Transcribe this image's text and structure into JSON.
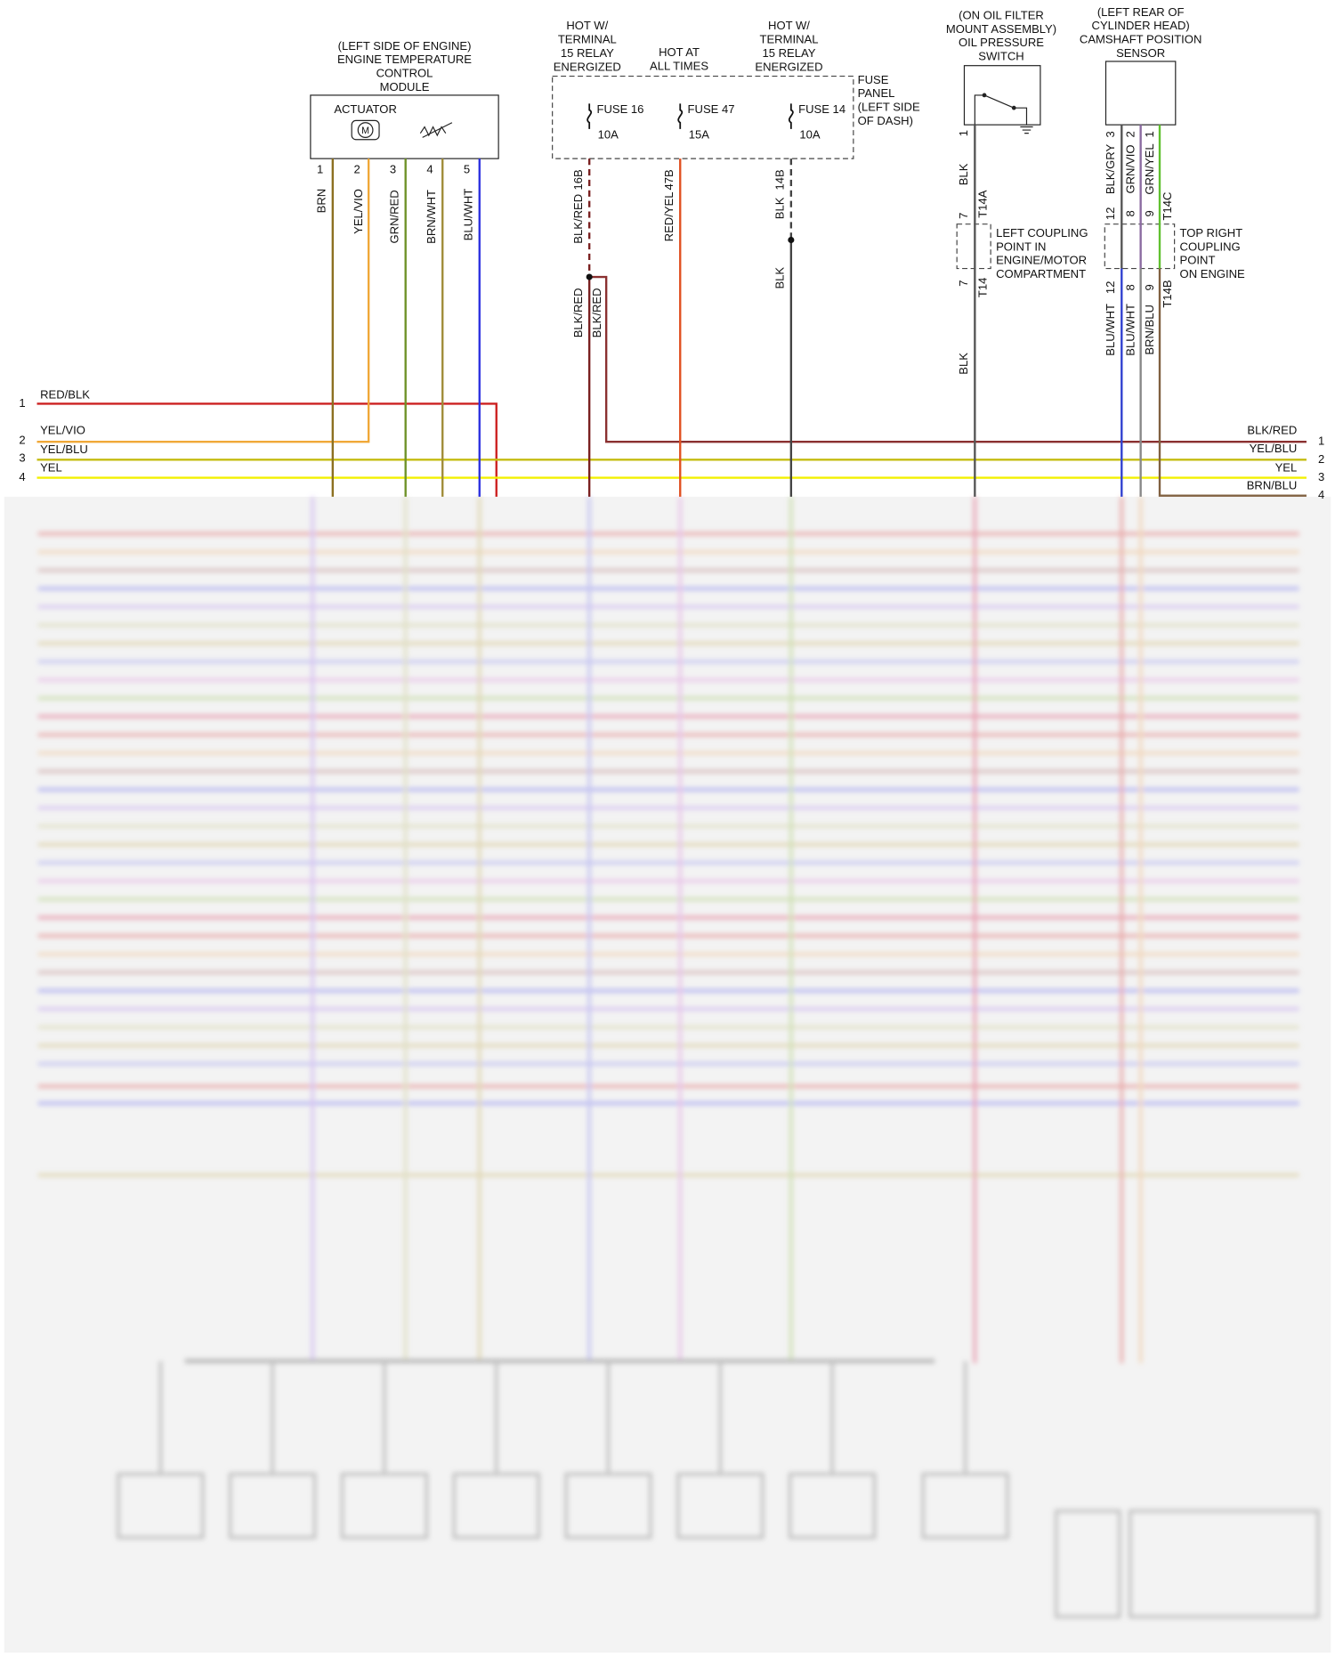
{
  "etc_module": {
    "title": [
      "(LEFT SIDE OF ENGINE)",
      "ENGINE TEMPERATURE",
      "CONTROL",
      "MODULE"
    ],
    "actuator": "ACTUATOR",
    "pins": [
      "1",
      "2",
      "3",
      "4",
      "5"
    ],
    "wires": [
      "BRN",
      "YEL/VIO",
      "GRN/RED",
      "BRN/WHT",
      "BLU/WHT"
    ]
  },
  "fuse_panel": {
    "supply_labels": [
      [
        "HOT W/",
        "TERMINAL",
        "15 RELAY",
        "ENERGIZED"
      ],
      [
        "HOT AT",
        "ALL TIMES"
      ],
      [
        "HOT W/",
        "TERMINAL",
        "15 RELAY",
        "ENERGIZED"
      ]
    ],
    "title": [
      "FUSE",
      "PANEL",
      "(LEFT SIDE",
      "OF DASH)"
    ],
    "fuses": [
      {
        "name": "FUSE 16",
        "rating": "10A",
        "wire": "BLK/RED",
        "terminal": "16B"
      },
      {
        "name": "FUSE 47",
        "rating": "15A",
        "wire": "RED/YEL",
        "terminal": "47B"
      },
      {
        "name": "FUSE 14",
        "rating": "10A",
        "wire": "BLK",
        "terminal": "14B"
      }
    ],
    "lower_wires": [
      "BLK/RED",
      "BLK/RED",
      "BLK"
    ]
  },
  "oil_pressure_switch": {
    "title": [
      "(ON OIL FILTER",
      "MOUNT ASSEMBLY)",
      "OIL PRESSURE",
      "SWITCH"
    ],
    "pin": "1",
    "wire": "BLK",
    "coupling_in": {
      "pin": "7",
      "connector": "T14A"
    },
    "coupling_out": {
      "pin": "7",
      "connector": "T14"
    },
    "lower_wire": "BLK"
  },
  "left_coupling": {
    "title": [
      "LEFT COUPLING",
      "POINT IN",
      "ENGINE/MOTOR",
      "COMPARTMENT"
    ]
  },
  "camshaft_sensor": {
    "title": [
      "(LEFT REAR OF",
      "CYLINDER HEAD)",
      "CAMSHAFT POSITION",
      "SENSOR"
    ],
    "pins": [
      "3",
      "2",
      "1"
    ],
    "wires": [
      "BLK/GRY",
      "GRN/VIO",
      "GRN/YEL"
    ],
    "coupling_in_pins": [
      "12",
      "8",
      "9"
    ],
    "coupling_in_connector": "T14C",
    "coupling_out_pins": [
      "12",
      "8",
      "9"
    ],
    "coupling_out_connector": "T14B",
    "lower_wires": [
      "BLU/WHT",
      "BLU/WHT",
      "BRN/BLU"
    ]
  },
  "top_right_coupling": {
    "title": [
      "TOP RIGHT",
      "COUPLING",
      "POINT",
      "ON ENGINE"
    ]
  },
  "left_connector": {
    "pins": [
      "1",
      "2",
      "3",
      "4"
    ],
    "wires": [
      "RED/BLK",
      "YEL/VIO",
      "YEL/BLU",
      "YEL"
    ]
  },
  "right_connector": {
    "pins": [
      "1",
      "2",
      "3",
      "4"
    ],
    "wires": [
      "BLK/RED",
      "YEL/BLU",
      "YEL",
      "BRN/BLU"
    ]
  }
}
